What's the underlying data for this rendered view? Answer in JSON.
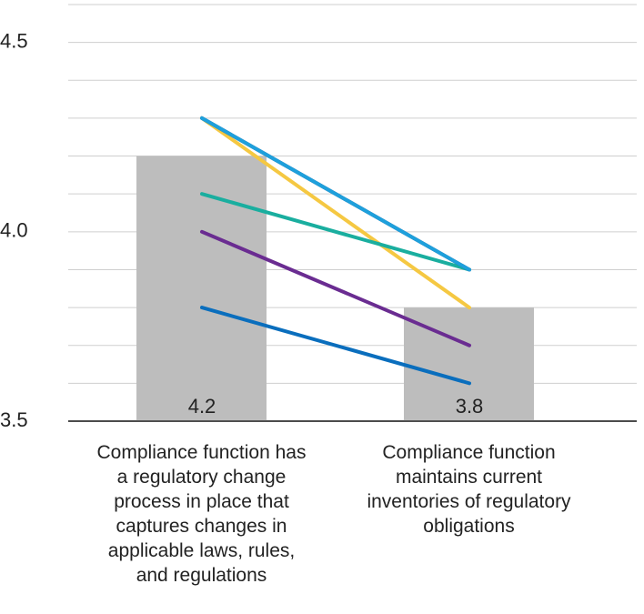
{
  "chart_data": {
    "type": "bar",
    "categories": [
      "Compliance function has a regulatory change process in place that captures changes in applicable laws, rules, and regulations",
      "Compliance function maintains current inventories of regulatory obligations"
    ],
    "values": [
      4.2,
      3.8
    ],
    "color": "#bdbdbd",
    "ylim": [
      3.5,
      4.6
    ],
    "yticks": [
      3.5,
      {
        "value": 4,
        "label": "4.0"
      },
      4.5
    ],
    "minor_yticks": [
      3.6,
      3.7,
      3.8,
      3.9,
      4.1,
      4.2,
      4.3,
      4.4,
      4.6
    ],
    "grid": true,
    "series": [
      {
        "type": "line",
        "color": "#f5c842",
        "values": [
          4.3,
          3.8
        ]
      },
      {
        "type": "line",
        "color": "#1aae9f",
        "values": [
          4.1,
          3.9
        ]
      },
      {
        "type": "line",
        "color": "#6a2c91",
        "values": [
          4.0,
          3.7
        ]
      },
      {
        "type": "line",
        "color": "#0a6ebd",
        "values": [
          3.8,
          3.6
        ]
      },
      {
        "type": "line",
        "color": "#0b2d6b",
        "values": [
          4.3,
          3.9
        ]
      },
      {
        "type": "line",
        "color": "#1ea0dc",
        "values": [
          4.3,
          3.9
        ]
      }
    ]
  }
}
